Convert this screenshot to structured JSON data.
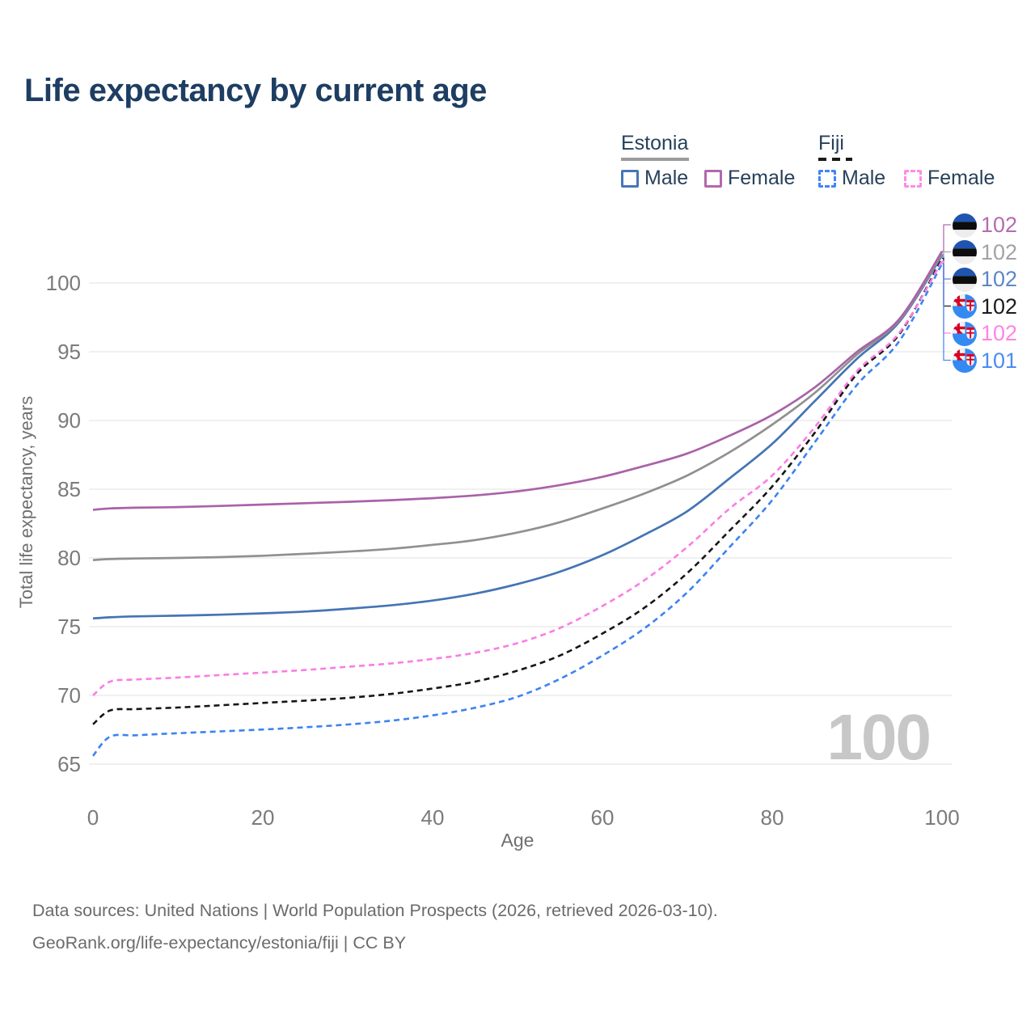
{
  "title": "Life expectancy by current age",
  "legend": {
    "groups": [
      {
        "country": "Estonia",
        "line_style": "solid",
        "line_color": "#9b9b9b",
        "items": [
          {
            "label": "Male",
            "color": "#4677b6",
            "dashed": false
          },
          {
            "label": "Female",
            "color": "#b169ac",
            "dashed": false
          }
        ]
      },
      {
        "country": "Fiji",
        "line_style": "dashed",
        "line_color": "#1a1a1a",
        "items": [
          {
            "label": "Male",
            "color": "#4285f4",
            "dashed": true
          },
          {
            "label": "Female",
            "color": "#ff8ce4",
            "dashed": true
          }
        ]
      }
    ]
  },
  "watermark": "100",
  "footer": {
    "line1": "Data sources: United Nations | World Population Prospects (2026, retrieved 2026-03-10).",
    "line2": "GeoRank.org/life-expectancy/estonia/fiji | CC BY"
  },
  "chart_data": {
    "type": "line",
    "title": "Life expectancy by current age",
    "xlabel": "Age",
    "ylabel": "Total life expectancy, years",
    "xlim": [
      0,
      100
    ],
    "ylim": [
      64,
      104
    ],
    "xticks": [
      0,
      20,
      40,
      60,
      80,
      100
    ],
    "yticks": [
      65,
      70,
      75,
      80,
      85,
      90,
      95,
      100
    ],
    "grid": "horizontal-only",
    "legend_position": "top-right",
    "x": [
      0,
      2,
      5,
      10,
      15,
      20,
      25,
      30,
      35,
      40,
      45,
      50,
      55,
      60,
      65,
      70,
      75,
      80,
      85,
      90,
      95,
      100
    ],
    "series": [
      {
        "name": "Estonia Female",
        "flag": "estonia",
        "line": "solid",
        "color": "#a962a8",
        "label_color": "#b46cae",
        "end_label": "102",
        "values": [
          83.5,
          83.6,
          83.65,
          83.7,
          83.78,
          83.88,
          83.98,
          84.08,
          84.2,
          84.35,
          84.55,
          84.85,
          85.3,
          85.9,
          86.7,
          87.6,
          88.9,
          90.4,
          92.4,
          95.0,
          97.4,
          102.3
        ]
      },
      {
        "name": "Estonia",
        "flag": "estonia",
        "line": "solid",
        "color": "#909090",
        "label_color": "#a3a3a3",
        "end_label": "102",
        "values": [
          79.85,
          79.92,
          79.96,
          80.0,
          80.06,
          80.16,
          80.3,
          80.46,
          80.66,
          80.95,
          81.3,
          81.85,
          82.6,
          83.6,
          84.7,
          86.0,
          87.7,
          89.7,
          92.0,
          94.8,
          97.3,
          102.1
        ]
      },
      {
        "name": "Estonia Male",
        "flag": "estonia",
        "line": "solid",
        "color": "#4474b4",
        "label_color": "#5e86c6",
        "end_label": "102",
        "values": [
          75.6,
          75.68,
          75.75,
          75.8,
          75.87,
          75.97,
          76.1,
          76.3,
          76.55,
          76.9,
          77.4,
          78.1,
          79.0,
          80.2,
          81.7,
          83.4,
          85.8,
          88.3,
          91.4,
          94.5,
          97.2,
          102.0
        ]
      },
      {
        "name": "Fiji",
        "flag": "fiji",
        "line": "dashed",
        "color": "#161616",
        "label_color": "#1c1c1c",
        "end_label": "102",
        "values": [
          67.9,
          68.9,
          69.0,
          69.12,
          69.28,
          69.45,
          69.62,
          69.82,
          70.1,
          70.5,
          71.0,
          71.8,
          72.9,
          74.5,
          76.4,
          78.9,
          82.0,
          85.2,
          89.1,
          93.4,
          96.3,
          101.8
        ]
      },
      {
        "name": "Fiji Female",
        "flag": "fiji",
        "line": "dashed",
        "color": "#fb7de2",
        "label_color": "#ff85e4",
        "end_label": "102",
        "values": [
          70.0,
          71.0,
          71.15,
          71.3,
          71.48,
          71.66,
          71.85,
          72.08,
          72.32,
          72.65,
          73.1,
          73.8,
          74.9,
          76.5,
          78.4,
          80.8,
          83.6,
          86.0,
          89.5,
          93.6,
          96.4,
          101.6
        ]
      },
      {
        "name": "Fiji Male",
        "flag": "fiji",
        "line": "dashed",
        "color": "#3c83f2",
        "label_color": "#4b8cf1",
        "end_label": "101",
        "values": [
          65.6,
          67.0,
          67.1,
          67.25,
          67.38,
          67.52,
          67.68,
          67.88,
          68.15,
          68.55,
          69.1,
          69.9,
          71.2,
          72.9,
          74.9,
          77.5,
          80.8,
          84.2,
          88.4,
          92.6,
          95.8,
          101.4
        ]
      }
    ]
  }
}
